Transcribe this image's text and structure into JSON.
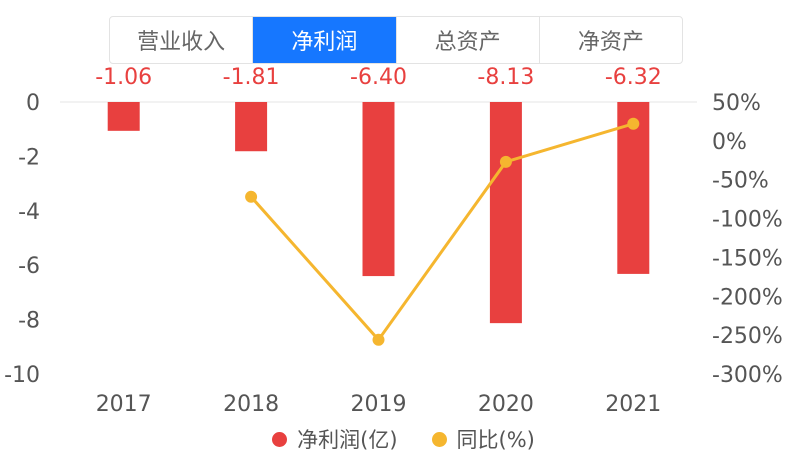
{
  "tabs": [
    {
      "label": "营业收入",
      "active": false
    },
    {
      "label": "净利润",
      "active": true
    },
    {
      "label": "总资产",
      "active": false
    },
    {
      "label": "净资产",
      "active": false
    }
  ],
  "colors": {
    "bar": "#e8403f",
    "line": "#f5b62f",
    "accent": "#1677ff"
  },
  "chart_data": {
    "type": "bar",
    "categories": [
      "2017",
      "2018",
      "2019",
      "2020",
      "2021"
    ],
    "series": [
      {
        "name": "净利润(亿)",
        "type": "bar",
        "axis": "left",
        "values": [
          -1.06,
          -1.81,
          -6.4,
          -8.13,
          -6.32
        ],
        "labels": [
          "-1.06",
          "-1.81",
          "-6.40",
          "-8.13",
          "-6.32"
        ]
      },
      {
        "name": "同比(%)",
        "type": "line",
        "axis": "right",
        "values": [
          null,
          -72,
          -256,
          -27,
          22
        ]
      }
    ],
    "left_axis": {
      "ticks": [
        "0",
        "-2",
        "-4",
        "-6",
        "-8",
        "-10"
      ],
      "ylim": [
        -10,
        0
      ]
    },
    "right_axis": {
      "ticks": [
        "50%",
        "0%",
        "-50%",
        "-100%",
        "-150%",
        "-200%",
        "-250%",
        "-300%"
      ],
      "ylim": [
        -300,
        50
      ]
    },
    "legend": "bottom"
  },
  "legend": [
    {
      "label": "净利润(亿)",
      "color": "#e8403f"
    },
    {
      "label": "同比(%)",
      "color": "#f5b62f"
    }
  ]
}
